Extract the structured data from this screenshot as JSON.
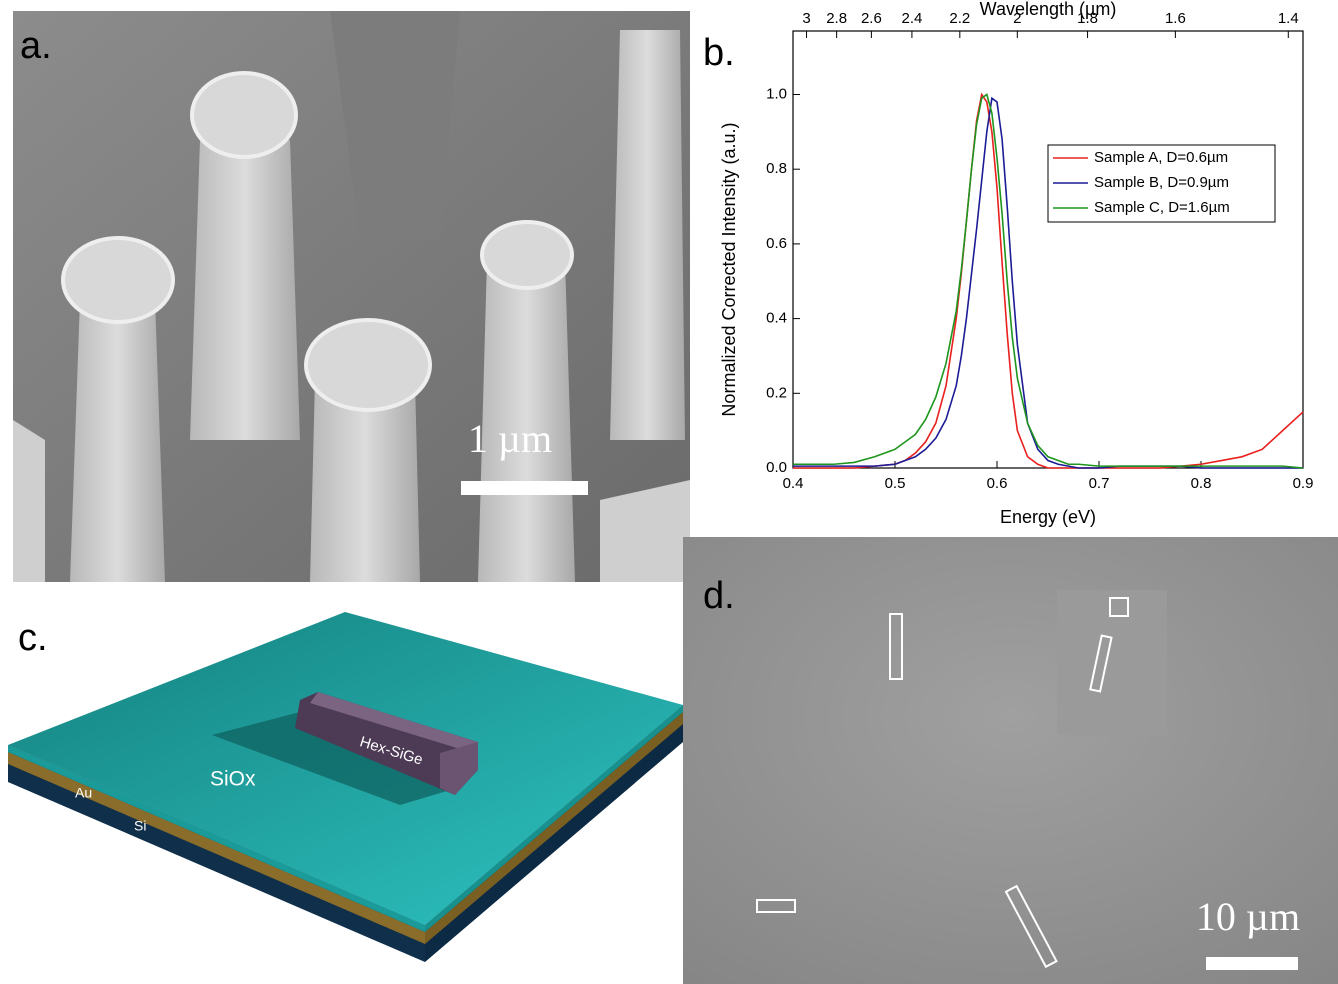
{
  "panels": {
    "a": {
      "label": "a.",
      "scale_bar": "1 µm"
    },
    "b": {
      "label": "b."
    },
    "c": {
      "label": "c.",
      "layer_labels": [
        "Hex-SiGe",
        "SiOx",
        "Au",
        "Si"
      ]
    },
    "d": {
      "label": "d.",
      "scale_bar": "10 µm"
    }
  },
  "chart_data": {
    "type": "line",
    "xlabel": "Energy (eV)",
    "ylabel": "Normalized Corrected Intensity (a.u.)",
    "x2label": "Wavelength (µm)",
    "xlim": [
      0.4,
      0.9
    ],
    "xticks": [
      0.4,
      0.5,
      0.6,
      0.7,
      0.8,
      0.9
    ],
    "ylim": [
      0,
      1.17
    ],
    "yticks": [
      {
        "value": 0,
        "label": "0.0"
      },
      0.2,
      0.4,
      0.6,
      0.8,
      {
        "value": 1,
        "label": "1.0"
      }
    ],
    "x2ticks": [
      3,
      2.8,
      2.6,
      2.4,
      2.2,
      2,
      1.8,
      1.6,
      1.4
    ],
    "legend": "upper right",
    "x": [
      0.4,
      0.42,
      0.44,
      0.46,
      0.48,
      0.5,
      0.51,
      0.52,
      0.53,
      0.54,
      0.55,
      0.56,
      0.565,
      0.57,
      0.575,
      0.58,
      0.585,
      0.59,
      0.595,
      0.6,
      0.605,
      0.61,
      0.615,
      0.62,
      0.63,
      0.64,
      0.65,
      0.66,
      0.67,
      0.68,
      0.7,
      0.72,
      0.74,
      0.76,
      0.78,
      0.8,
      0.82,
      0.84,
      0.86,
      0.88,
      0.9
    ],
    "series": [
      {
        "name": "Sample A, D=0.6µm",
        "color": "#e8201e",
        "values": [
          0,
          0,
          0,
          0,
          0.005,
          0.01,
          0.02,
          0.04,
          0.07,
          0.12,
          0.22,
          0.4,
          0.52,
          0.66,
          0.8,
          0.93,
          1.0,
          0.98,
          0.9,
          0.75,
          0.55,
          0.36,
          0.2,
          0.1,
          0.03,
          0.01,
          0,
          0,
          0,
          0,
          0,
          0,
          0,
          0,
          0.005,
          0.01,
          0.02,
          0.03,
          0.05,
          0.1,
          0.15
        ]
      },
      {
        "name": "Sample B, D=0.9µm",
        "color": "#1c1c96",
        "values": [
          0.005,
          0.005,
          0.005,
          0.005,
          0.005,
          0.01,
          0.02,
          0.03,
          0.05,
          0.08,
          0.13,
          0.22,
          0.3,
          0.4,
          0.52,
          0.64,
          0.77,
          0.9,
          0.99,
          0.98,
          0.88,
          0.7,
          0.5,
          0.33,
          0.12,
          0.05,
          0.02,
          0.01,
          0.005,
          0,
          0,
          0.005,
          0.005,
          0.005,
          0.005,
          0,
          0,
          0,
          0,
          0,
          0
        ]
      },
      {
        "name": "Sample C, D=1.6µm",
        "color": "#1e961e",
        "values": [
          0.01,
          0.01,
          0.01,
          0.015,
          0.03,
          0.05,
          0.07,
          0.09,
          0.13,
          0.19,
          0.28,
          0.42,
          0.53,
          0.66,
          0.8,
          0.92,
          0.99,
          1.0,
          0.95,
          0.83,
          0.68,
          0.5,
          0.35,
          0.24,
          0.12,
          0.06,
          0.03,
          0.02,
          0.01,
          0.01,
          0.005,
          0.005,
          0.005,
          0.005,
          0.005,
          0.005,
          0.005,
          0.005,
          0.005,
          0.005,
          0
        ]
      }
    ]
  }
}
